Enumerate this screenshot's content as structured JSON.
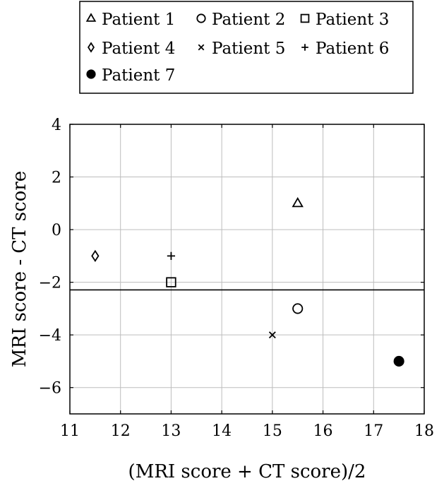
{
  "chart_data": {
    "type": "scatter",
    "title": "",
    "xlabel": "(MRI score + CT score)/2",
    "ylabel": "MRI score - CT score",
    "xlim": [
      11,
      18
    ],
    "ylim": [
      -7,
      4
    ],
    "xticks": [
      11,
      12,
      13,
      14,
      15,
      16,
      17,
      18
    ],
    "yticks": [
      -6,
      -4,
      -2,
      0,
      2,
      4
    ],
    "xtick_labels": [
      "11",
      "12",
      "13",
      "14",
      "15",
      "16",
      "17",
      "18"
    ],
    "ytick_labels": [
      "−6",
      "−4",
      "−2",
      "0",
      "2",
      "4"
    ],
    "grid": true,
    "legend_position": "top",
    "series": [
      {
        "name": "Patient 1",
        "marker": "triangle",
        "x": [
          15.5
        ],
        "y": [
          1
        ]
      },
      {
        "name": "Patient 2",
        "marker": "circle",
        "x": [
          15.5
        ],
        "y": [
          -3
        ]
      },
      {
        "name": "Patient 3",
        "marker": "square",
        "x": [
          13
        ],
        "y": [
          -2
        ]
      },
      {
        "name": "Patient 4",
        "marker": "diamond",
        "x": [
          11.5
        ],
        "y": [
          -1
        ]
      },
      {
        "name": "Patient 5",
        "marker": "cross",
        "x": [
          15
        ],
        "y": [
          -4
        ]
      },
      {
        "name": "Patient 6",
        "marker": "plus",
        "x": [
          13
        ],
        "y": [
          -1
        ]
      },
      {
        "name": "Patient 7",
        "marker": "filled-circle",
        "x": [
          17.5
        ],
        "y": [
          -5
        ]
      }
    ],
    "reference_lines": [
      {
        "type": "horizontal",
        "y": -2.29
      }
    ],
    "colors": {
      "marker": "#000000",
      "grid": "#bdbdbd",
      "axis": "#000000"
    }
  }
}
